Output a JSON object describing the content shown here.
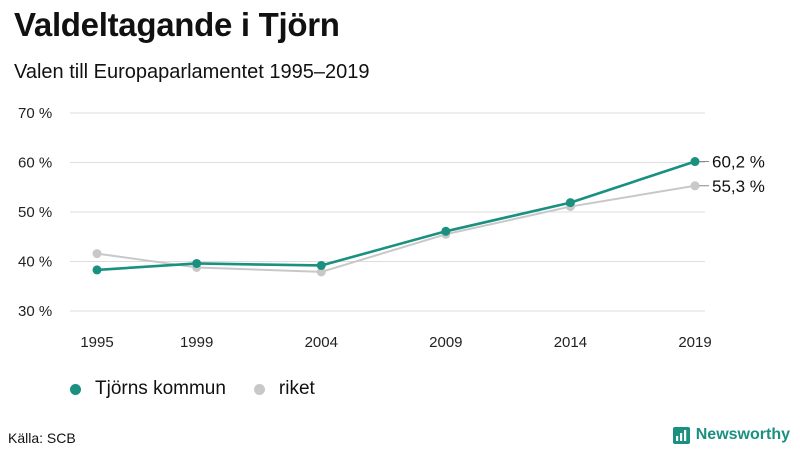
{
  "title": "Valdeltagande i Tjörn",
  "subtitle": "Valen till Europaparlamentet 1995–2019",
  "source": "Källa: SCB",
  "brand": "Newsworthy",
  "colors": {
    "series1": "#1a9080",
    "series2": "#c8c8c8",
    "grid": "#dddddd",
    "brand": "#1a9080"
  },
  "chart_data": {
    "type": "line",
    "categories": [
      "1995",
      "1999",
      "2004",
      "2009",
      "2014",
      "2019"
    ],
    "x": [
      1995,
      1999,
      2004,
      2009,
      2014,
      2019
    ],
    "ylim": [
      30,
      70
    ],
    "yticks": [
      30,
      40,
      50,
      60,
      70
    ],
    "ytick_labels": [
      "30 %",
      "40 %",
      "50 %",
      "60 %",
      "70 %"
    ],
    "grid": true,
    "series": [
      {
        "name": "Tjörns kommun",
        "color": "#1a9080",
        "values": [
          38.3,
          39.6,
          39.2,
          46.1,
          51.9,
          60.2
        ],
        "end_label": "60,2 %"
      },
      {
        "name": "riket",
        "color": "#c8c8c8",
        "values": [
          41.6,
          38.8,
          37.9,
          45.5,
          51.1,
          55.3
        ],
        "end_label": "55,3 %"
      }
    ],
    "legend": "bottom-left"
  }
}
